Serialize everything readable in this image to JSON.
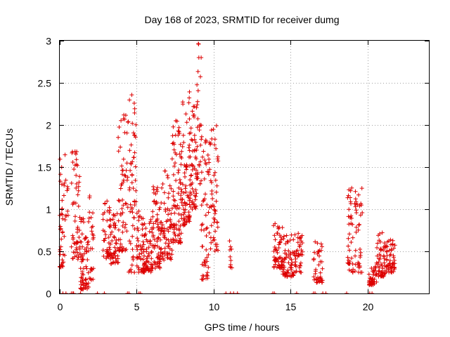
{
  "chart_data": {
    "type": "scatter",
    "title": "Day 168 of 2023, SRMTID for receiver dumg",
    "xlabel": "GPS time / hours",
    "ylabel": "SRMTID / TECUs",
    "xlim": [
      0,
      24
    ],
    "ylim": [
      0,
      3
    ],
    "xticks": [
      0,
      5,
      10,
      15,
      20
    ],
    "yticks": [
      0,
      0.5,
      1,
      1.5,
      2,
      2.5,
      3
    ],
    "xtick_labels": [
      "0",
      "5",
      "10",
      "15",
      "20"
    ],
    "ytick_labels": [
      "0",
      "0.5",
      "1",
      "1.5",
      "2",
      "2.5",
      "3"
    ],
    "grid": true,
    "legend": "none",
    "marker": "plus",
    "color": "#dd0000",
    "clusters": [
      {
        "x_range": [
          0.0,
          0.35
        ],
        "y_range": [
          0.3,
          1.7
        ],
        "n": 40
      },
      {
        "x_range": [
          0.35,
          0.55
        ],
        "y_range": [
          0.9,
          1.5
        ],
        "n": 8
      },
      {
        "x_range": [
          0.75,
          1.3
        ],
        "y_range": [
          0.4,
          1.7
        ],
        "n": 55
      },
      {
        "x_range": [
          1.3,
          1.9
        ],
        "y_range": [
          0.05,
          0.95
        ],
        "n": 70
      },
      {
        "x_range": [
          1.9,
          2.2
        ],
        "y_range": [
          0.15,
          1.3
        ],
        "n": 25
      },
      {
        "x_range": [
          2.8,
          3.3
        ],
        "y_range": [
          0.4,
          1.15
        ],
        "n": 45
      },
      {
        "x_range": [
          3.3,
          3.8
        ],
        "y_range": [
          0.35,
          0.95
        ],
        "n": 45
      },
      {
        "x_range": [
          3.8,
          4.4
        ],
        "y_range": [
          0.5,
          2.2
        ],
        "n": 60
      },
      {
        "x_range": [
          4.4,
          5.0
        ],
        "y_range": [
          0.25,
          2.4
        ],
        "n": 60
      },
      {
        "x_range": [
          5.0,
          5.5
        ],
        "y_range": [
          0.25,
          1.0
        ],
        "n": 55
      },
      {
        "x_range": [
          5.5,
          6.0
        ],
        "y_range": [
          0.25,
          0.9
        ],
        "n": 55
      },
      {
        "x_range": [
          6.0,
          6.8
        ],
        "y_range": [
          0.3,
          1.3
        ],
        "n": 90
      },
      {
        "x_range": [
          6.8,
          7.3
        ],
        "y_range": [
          0.4,
          1.5
        ],
        "n": 55
      },
      {
        "x_range": [
          7.3,
          7.9
        ],
        "y_range": [
          0.6,
          2.1
        ],
        "n": 80
      },
      {
        "x_range": [
          7.9,
          8.5
        ],
        "y_range": [
          0.8,
          2.4
        ],
        "n": 80
      },
      {
        "x_range": [
          8.5,
          8.9
        ],
        "y_range": [
          1.0,
          2.3
        ],
        "n": 50
      },
      {
        "x_range": [
          8.9,
          9.2
        ],
        "y_range": [
          1.3,
          2.97
        ],
        "n": 30
      },
      {
        "x_range": [
          9.2,
          9.7
        ],
        "y_range": [
          0.15,
          1.9
        ],
        "n": 55
      },
      {
        "x_range": [
          9.7,
          10.3
        ],
        "y_range": [
          0.5,
          2.0
        ],
        "n": 55
      },
      {
        "x_range": [
          11.0,
          11.2
        ],
        "y_range": [
          0.3,
          0.65
        ],
        "n": 10
      },
      {
        "x_range": [
          13.9,
          14.5
        ],
        "y_range": [
          0.3,
          0.85
        ],
        "n": 55
      },
      {
        "x_range": [
          14.5,
          15.2
        ],
        "y_range": [
          0.2,
          0.7
        ],
        "n": 60
      },
      {
        "x_range": [
          15.2,
          15.8
        ],
        "y_range": [
          0.25,
          0.72
        ],
        "n": 45
      },
      {
        "x_range": [
          16.5,
          17.1
        ],
        "y_range": [
          0.13,
          0.62
        ],
        "n": 40
      },
      {
        "x_range": [
          18.7,
          19.2
        ],
        "y_range": [
          0.25,
          1.32
        ],
        "n": 40
      },
      {
        "x_range": [
          19.2,
          19.7
        ],
        "y_range": [
          0.25,
          1.25
        ],
        "n": 35
      },
      {
        "x_range": [
          20.1,
          20.6
        ],
        "y_range": [
          0.1,
          0.32
        ],
        "n": 40
      },
      {
        "x_range": [
          20.6,
          21.2
        ],
        "y_range": [
          0.2,
          0.75
        ],
        "n": 55
      },
      {
        "x_range": [
          21.2,
          21.8
        ],
        "y_range": [
          0.25,
          0.65
        ],
        "n": 55
      }
    ],
    "zero_points_x": [
      0.2,
      0.4,
      0.75,
      0.85,
      0.9,
      1.35,
      2.45,
      2.9,
      4.4,
      4.5,
      5.15,
      5.25,
      10.8,
      11.1,
      11.3,
      11.55,
      13.85,
      13.95,
      15.4,
      16.5,
      16.6,
      17.1,
      17.3,
      18.65,
      20.15,
      20.3
    ]
  }
}
